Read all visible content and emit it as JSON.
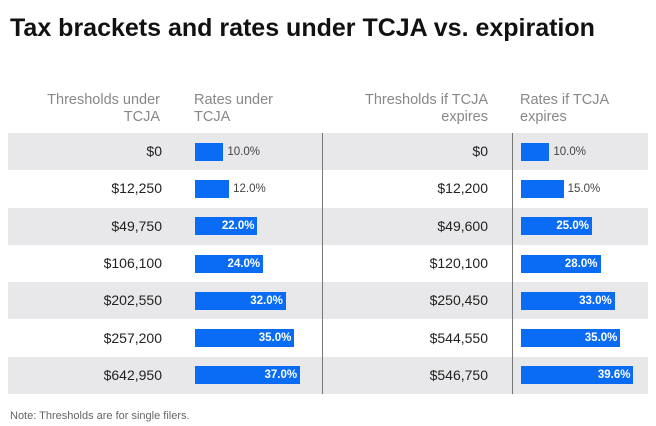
{
  "title": "Tax brackets and rates under TCJA vs. expiration",
  "headers": {
    "thresholds_tcja": [
      "Thresholds under",
      "TCJA"
    ],
    "rates_tcja": [
      "Rates under",
      "TCJA"
    ],
    "thresholds_exp": [
      "Thresholds if TCJA",
      "expires"
    ],
    "rates_exp": [
      "Rates if TCJA",
      "expires"
    ]
  },
  "note": "Note: Thresholds are for single filers.",
  "colors": {
    "bar": "#0a6cf5",
    "shaded_row": "#e8e8ea",
    "divider": "#777777"
  },
  "chart_data": {
    "type": "table",
    "columns": [
      "Thresholds under TCJA",
      "Rates under TCJA",
      "Thresholds if TCJA expires",
      "Rates if TCJA expires"
    ],
    "rows": [
      {
        "tcja_threshold": "$0",
        "tcja_rate": 10.0,
        "tcja_rate_label": "10.0%",
        "exp_threshold": "$0",
        "exp_rate": 10.0,
        "exp_rate_label": "10.0%"
      },
      {
        "tcja_threshold": "$12,250",
        "tcja_rate": 12.0,
        "tcja_rate_label": "12.0%",
        "exp_threshold": "$12,200",
        "exp_rate": 15.0,
        "exp_rate_label": "15.0%"
      },
      {
        "tcja_threshold": "$49,750",
        "tcja_rate": 22.0,
        "tcja_rate_label": "22.0%",
        "exp_threshold": "$49,600",
        "exp_rate": 25.0,
        "exp_rate_label": "25.0%"
      },
      {
        "tcja_threshold": "$106,100",
        "tcja_rate": 24.0,
        "tcja_rate_label": "24.0%",
        "exp_threshold": "$120,100",
        "exp_rate": 28.0,
        "exp_rate_label": "28.0%"
      },
      {
        "tcja_threshold": "$202,550",
        "tcja_rate": 32.0,
        "tcja_rate_label": "32.0%",
        "exp_threshold": "$250,450",
        "exp_rate": 33.0,
        "exp_rate_label": "33.0%"
      },
      {
        "tcja_threshold": "$257,200",
        "tcja_rate": 35.0,
        "tcja_rate_label": "35.0%",
        "exp_threshold": "$544,550",
        "exp_rate": 35.0,
        "exp_rate_label": "35.0%"
      },
      {
        "tcja_threshold": "$642,950",
        "tcja_rate": 37.0,
        "tcja_rate_label": "37.0%",
        "exp_threshold": "$546,750",
        "exp_rate": 39.6,
        "exp_rate_label": "39.6%"
      }
    ],
    "rate_axis_max": 40
  }
}
